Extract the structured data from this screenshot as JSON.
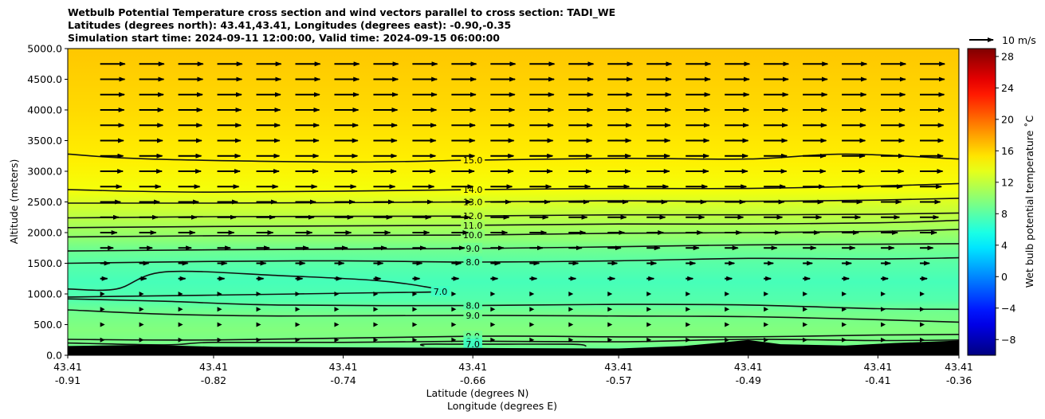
{
  "title": {
    "line1": "Wetbulb Potential Temperature cross section and wind vectors parallel to cross section: TADI_WE",
    "line2": "Latitudes (degrees north): 43.41,43.41, Longitudes (degrees east): -0.90,-0.35",
    "line3": "Simulation start time: 2024-09-11 12:00:00, Valid time: 2024-09-15 06:00:00"
  },
  "chart_data": {
    "type": "heatmap",
    "subtype": "cross-section contour with wind vectors",
    "ylabel": "Altitude (meters)",
    "xlabel_lat": "Latitude (degrees N)",
    "xlabel_lon": "Longitude (degrees E)",
    "ylim": [
      0,
      5000
    ],
    "y_ticks": [
      {
        "value": 0,
        "label": "0.0"
      },
      {
        "value": 500,
        "label": "500.0"
      },
      {
        "value": 1000,
        "label": "1000.0"
      },
      {
        "value": 1500,
        "label": "1500.0"
      },
      {
        "value": 2000,
        "label": "2000.0"
      },
      {
        "value": 2500,
        "label": "2500.0"
      },
      {
        "value": 3000,
        "label": "3000.0"
      },
      {
        "value": 3500,
        "label": "3500.0"
      },
      {
        "value": 4000,
        "label": "4000.0"
      },
      {
        "value": 4500,
        "label": "4500.0"
      },
      {
        "value": 5000,
        "label": "5000.0"
      }
    ],
    "xlim": [
      -0.91,
      -0.36
    ],
    "x_ticks": [
      {
        "lon": -0.91,
        "lat_label": "43.41",
        "lon_label": "-0.91"
      },
      {
        "lon": -0.82,
        "lat_label": "43.41",
        "lon_label": "-0.82"
      },
      {
        "lon": -0.74,
        "lat_label": "43.41",
        "lon_label": "-0.74"
      },
      {
        "lon": -0.66,
        "lat_label": "43.41",
        "lon_label": "-0.66"
      },
      {
        "lon": -0.57,
        "lat_label": "43.41",
        "lon_label": "-0.57"
      },
      {
        "lon": -0.49,
        "lat_label": "43.41",
        "lon_label": "-0.49"
      },
      {
        "lon": -0.41,
        "lat_label": "43.41",
        "lon_label": "-0.41"
      },
      {
        "lon": -0.36,
        "lat_label": "43.41",
        "lon_label": "-0.36"
      }
    ],
    "colorbar": {
      "label": "Wet bulb potential temperature $^\\circ$C",
      "label_text": "Wet bulb potential temperature ˚C",
      "range": [
        -10,
        29
      ],
      "ticks": [
        {
          "value": -8,
          "label": "−8"
        },
        {
          "value": -4,
          "label": "−4"
        },
        {
          "value": 0,
          "label": "0"
        },
        {
          "value": 4,
          "label": "4"
        },
        {
          "value": 8,
          "label": "8"
        },
        {
          "value": 12,
          "label": "12"
        },
        {
          "value": 16,
          "label": "16"
        },
        {
          "value": 20,
          "label": "20"
        },
        {
          "value": 24,
          "label": "24"
        },
        {
          "value": 28,
          "label": "28"
        }
      ],
      "colormap": "jet"
    },
    "vertical_profile": [
      {
        "alt": 0,
        "theta": 8.0
      },
      {
        "alt": 200,
        "theta": 9.2
      },
      {
        "alt": 400,
        "theta": 9.6
      },
      {
        "alt": 700,
        "theta": 9.0
      },
      {
        "alt": 900,
        "theta": 7.8
      },
      {
        "alt": 1200,
        "theta": 7.3
      },
      {
        "alt": 1500,
        "theta": 8.0
      },
      {
        "alt": 1750,
        "theta": 9.0
      },
      {
        "alt": 1900,
        "theta": 10.0
      },
      {
        "alt": 2100,
        "theta": 11.0
      },
      {
        "alt": 2300,
        "theta": 12.0
      },
      {
        "alt": 2500,
        "theta": 13.0
      },
      {
        "alt": 2700,
        "theta": 14.0
      },
      {
        "alt": 3200,
        "theta": 15.0
      },
      {
        "alt": 4000,
        "theta": 15.8
      },
      {
        "alt": 5000,
        "theta": 16.5
      }
    ],
    "contours": [
      {
        "level": "15.0",
        "points": [
          [
            -0.91,
            3280
          ],
          [
            -0.86,
            3200
          ],
          [
            -0.74,
            3150
          ],
          [
            -0.66,
            3180
          ],
          [
            -0.57,
            3210
          ],
          [
            -0.49,
            3200
          ],
          [
            -0.43,
            3280
          ],
          [
            -0.36,
            3200
          ]
        ]
      },
      {
        "level": "14.0",
        "points": [
          [
            -0.91,
            2700
          ],
          [
            -0.82,
            2660
          ],
          [
            -0.66,
            2700
          ],
          [
            -0.57,
            2720
          ],
          [
            -0.49,
            2720
          ],
          [
            -0.41,
            2760
          ],
          [
            -0.36,
            2800
          ]
        ]
      },
      {
        "level": "13.0",
        "points": [
          [
            -0.91,
            2480
          ],
          [
            -0.82,
            2480
          ],
          [
            -0.66,
            2500
          ],
          [
            -0.57,
            2520
          ],
          [
            -0.49,
            2510
          ],
          [
            -0.41,
            2530
          ],
          [
            -0.36,
            2560
          ]
        ]
      },
      {
        "level": "12.0",
        "points": [
          [
            -0.91,
            2240
          ],
          [
            -0.82,
            2260
          ],
          [
            -0.66,
            2270
          ],
          [
            -0.57,
            2290
          ],
          [
            -0.49,
            2290
          ],
          [
            -0.41,
            2300
          ],
          [
            -0.36,
            2320
          ]
        ]
      },
      {
        "level": "11.0",
        "points": [
          [
            -0.91,
            2080
          ],
          [
            -0.82,
            2100
          ],
          [
            -0.66,
            2120
          ],
          [
            -0.57,
            2140
          ],
          [
            -0.49,
            2140
          ],
          [
            -0.41,
            2160
          ],
          [
            -0.36,
            2200
          ]
        ]
      },
      {
        "level": "10.0",
        "points": [
          [
            -0.91,
            1930
          ],
          [
            -0.82,
            1950
          ],
          [
            -0.66,
            1960
          ],
          [
            -0.57,
            1990
          ],
          [
            -0.49,
            2000
          ],
          [
            -0.41,
            2020
          ],
          [
            -0.36,
            2050
          ]
        ]
      },
      {
        "level": "9.0",
        "points": [
          [
            -0.91,
            1700
          ],
          [
            -0.82,
            1720
          ],
          [
            -0.66,
            1740
          ],
          [
            -0.57,
            1770
          ],
          [
            -0.49,
            1800
          ],
          [
            -0.41,
            1810
          ],
          [
            -0.36,
            1820
          ]
        ]
      },
      {
        "level": "8.0",
        "points": [
          [
            -0.91,
            1500
          ],
          [
            -0.82,
            1530
          ],
          [
            -0.74,
            1540
          ],
          [
            -0.66,
            1520
          ],
          [
            -0.57,
            1540
          ],
          [
            -0.49,
            1580
          ],
          [
            -0.41,
            1570
          ],
          [
            -0.36,
            1590
          ]
        ]
      },
      {
        "level": "7.0",
        "points": [
          [
            -0.91,
            1080
          ],
          [
            -0.88,
            1080
          ],
          [
            -0.85,
            1360
          ],
          [
            -0.78,
            1300
          ],
          [
            -0.72,
            1220
          ],
          [
            -0.69,
            1120
          ],
          [
            -0.68,
            1040
          ],
          [
            -0.72,
            1020
          ],
          [
            -0.82,
            980
          ],
          [
            -0.88,
            960
          ],
          [
            -0.91,
            950
          ]
        ]
      },
      {
        "level": "8.0",
        "points": [
          [
            -0.91,
            920
          ],
          [
            -0.85,
            880
          ],
          [
            -0.78,
            820
          ],
          [
            -0.66,
            810
          ],
          [
            -0.57,
            830
          ],
          [
            -0.49,
            820
          ],
          [
            -0.41,
            760
          ],
          [
            -0.36,
            750
          ]
        ]
      },
      {
        "level": "9.0",
        "points": [
          [
            -0.91,
            740
          ],
          [
            -0.85,
            670
          ],
          [
            -0.78,
            640
          ],
          [
            -0.66,
            650
          ],
          [
            -0.57,
            640
          ],
          [
            -0.49,
            630
          ],
          [
            -0.41,
            580
          ],
          [
            -0.36,
            540
          ]
        ]
      },
      {
        "level": "9.0",
        "points": [
          [
            -0.91,
            260
          ],
          [
            -0.82,
            250
          ],
          [
            -0.66,
            310
          ],
          [
            -0.57,
            300
          ],
          [
            -0.49,
            300
          ],
          [
            -0.41,
            330
          ],
          [
            -0.36,
            340
          ]
        ]
      },
      {
        "level": "8.0",
        "points": [
          [
            -0.91,
            200
          ],
          [
            -0.85,
            170
          ],
          [
            -0.82,
            210
          ],
          [
            -0.74,
            210
          ],
          [
            -0.66,
            230
          ],
          [
            -0.57,
            220
          ],
          [
            -0.49,
            260
          ],
          [
            -0.41,
            240
          ],
          [
            -0.36,
            250
          ]
        ]
      },
      {
        "level": "7.0",
        "points": [
          [
            -0.69,
            150
          ],
          [
            -0.69,
            180
          ],
          [
            -0.66,
            180
          ],
          [
            -0.6,
            180
          ],
          [
            -0.59,
            150
          ]
        ]
      }
    ],
    "terrain": [
      [
        -0.91,
        150
      ],
      [
        -0.86,
        170
      ],
      [
        -0.82,
        140
      ],
      [
        -0.74,
        130
      ],
      [
        -0.66,
        120
      ],
      [
        -0.57,
        110
      ],
      [
        -0.53,
        150
      ],
      [
        -0.49,
        250
      ],
      [
        -0.47,
        180
      ],
      [
        -0.43,
        160
      ],
      [
        -0.4,
        200
      ],
      [
        -0.38,
        220
      ],
      [
        -0.36,
        240
      ]
    ],
    "wind_profile": [
      {
        "alt": 5000,
        "u": 10.5
      },
      {
        "alt": 4000,
        "u": 10.0
      },
      {
        "alt": 3000,
        "u": 9.5
      },
      {
        "alt": 2500,
        "u": 8.5
      },
      {
        "alt": 2000,
        "u": 7.0
      },
      {
        "alt": 1500,
        "u": 4.0
      },
      {
        "alt": 1000,
        "u": 2.0
      },
      {
        "alt": 500,
        "u": 1.0
      },
      {
        "alt": 250,
        "u": 0.8
      }
    ],
    "wind_reference": {
      "value": 10,
      "label": "10 m/s"
    },
    "terrain_color": "#000000"
  }
}
